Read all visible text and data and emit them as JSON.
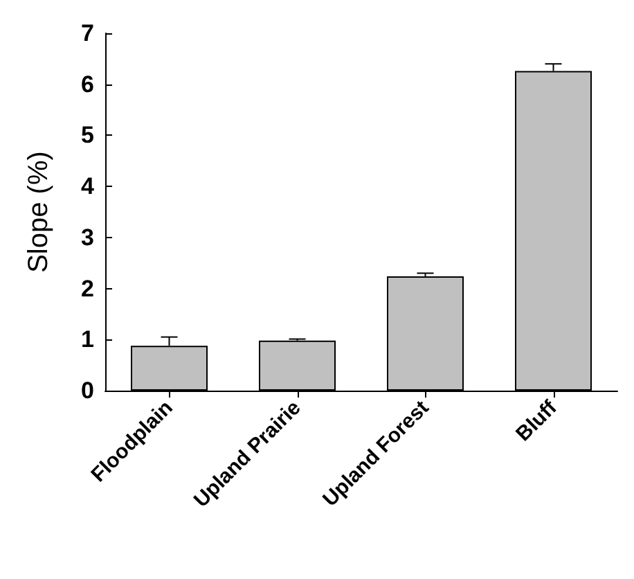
{
  "chart_data": {
    "type": "bar",
    "ylabel": "Slope (%)",
    "categories": [
      "Floodplain",
      "Upland Prairie",
      "Upland Forest",
      "Bluff"
    ],
    "values": [
      0.88,
      0.98,
      2.24,
      6.26
    ],
    "errors": [
      [
        0.88,
        1.05
      ],
      [
        0.98,
        1.01
      ],
      [
        2.24,
        2.3
      ],
      [
        6.26,
        6.4
      ]
    ],
    "color": "#c0c0c0",
    "ylim": [
      0,
      7
    ],
    "yticks": [
      0,
      1,
      2,
      3,
      4,
      5,
      6,
      7
    ],
    "grid": false
  }
}
